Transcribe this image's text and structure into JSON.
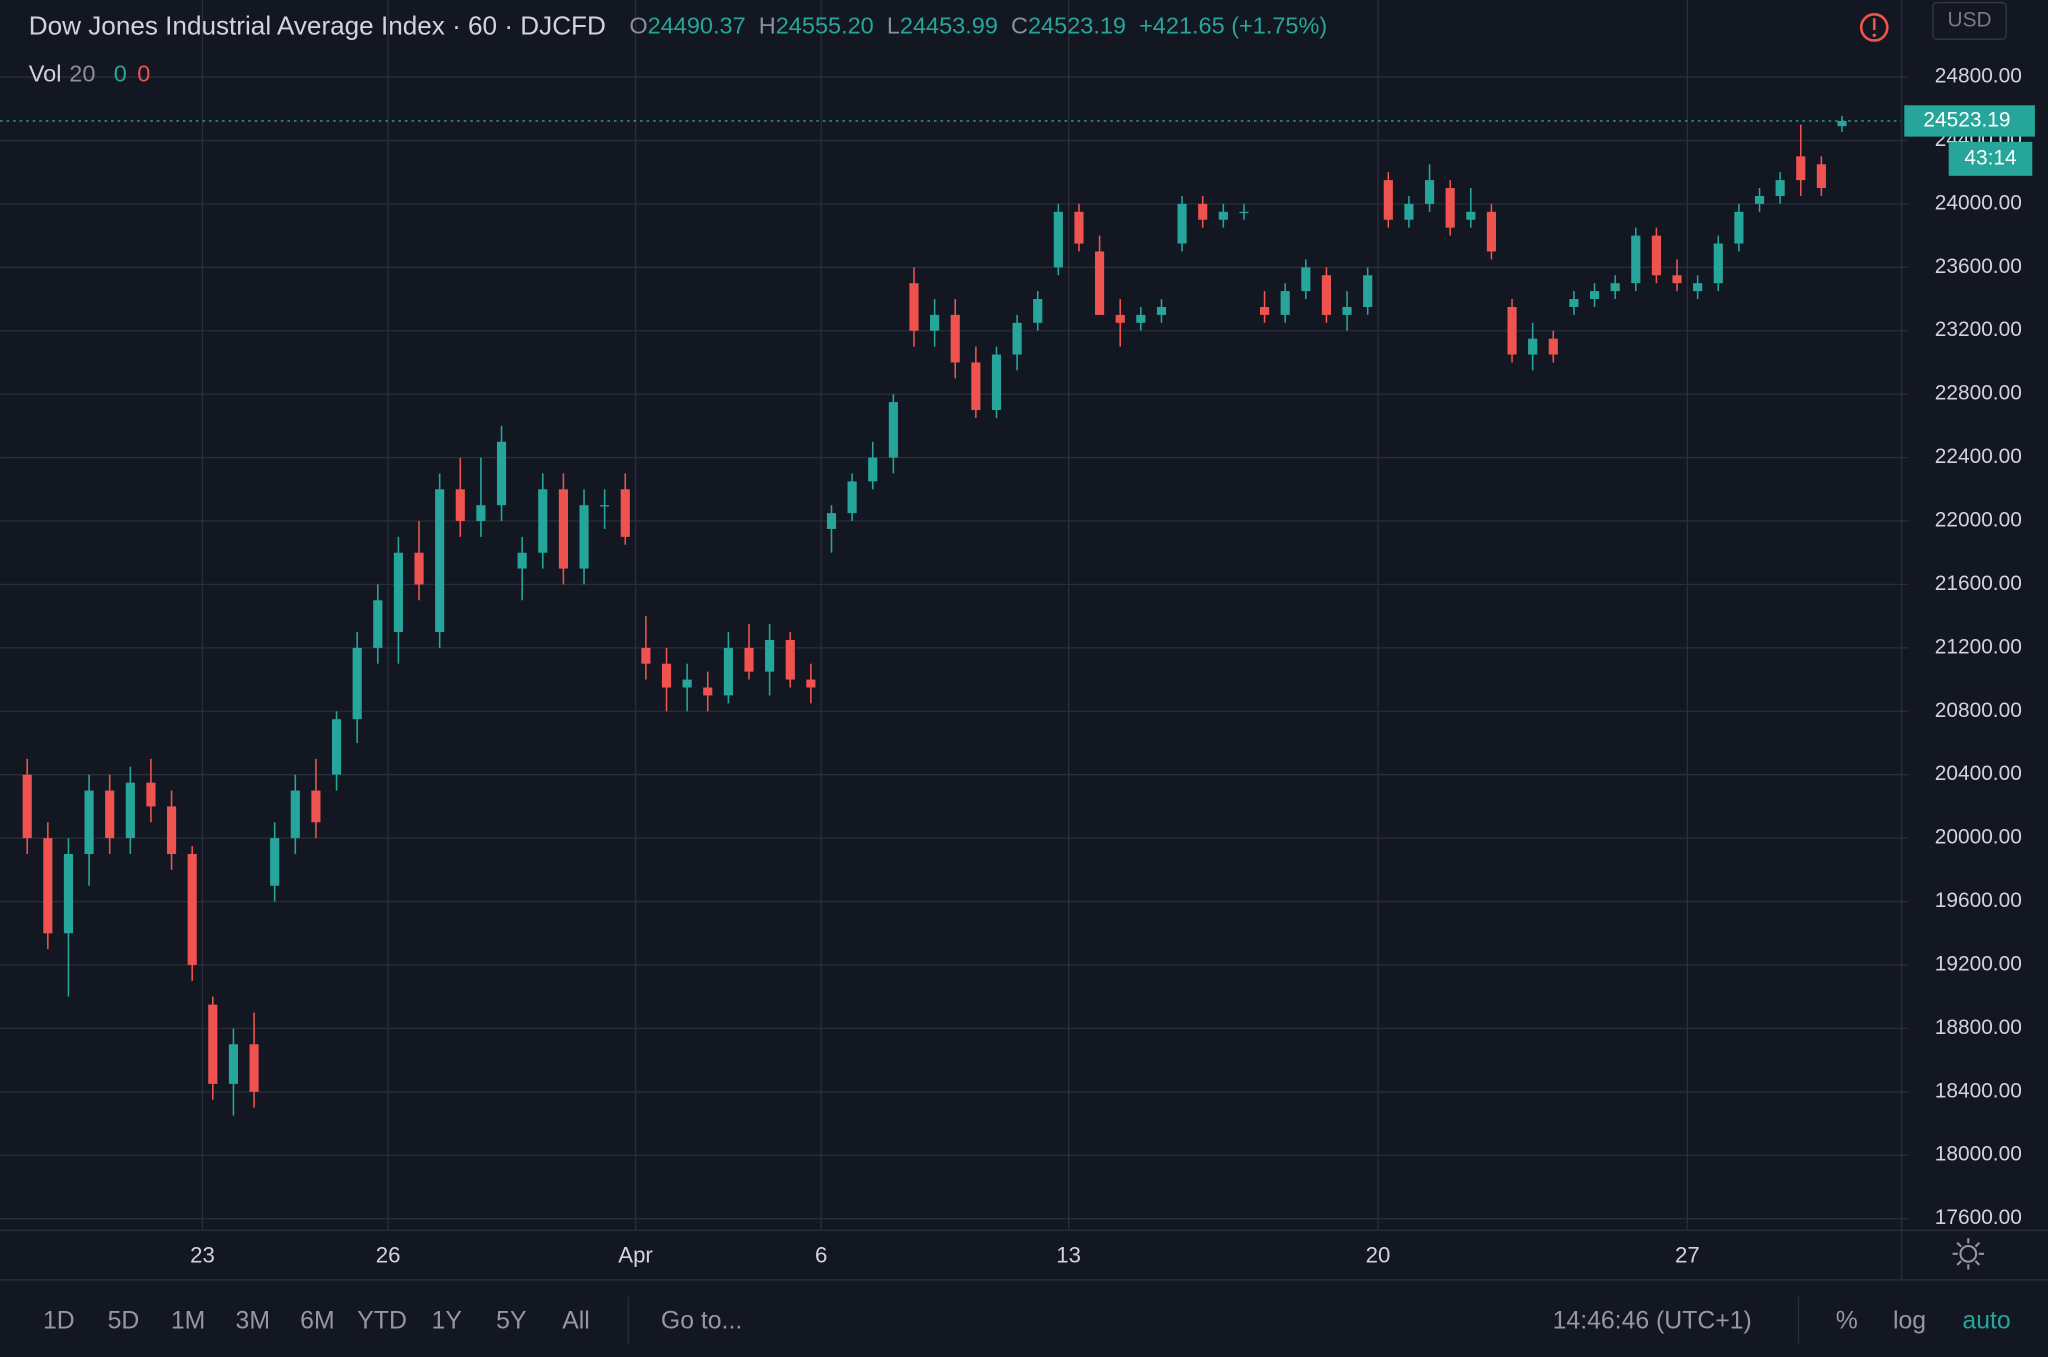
{
  "header": {
    "title": "Dow Jones Industrial Average Index · 60 · DJCFD",
    "open_label": "O",
    "open": "24490.37",
    "high_label": "H",
    "high": "24555.20",
    "low_label": "L",
    "low": "24453.99",
    "close_label": "C",
    "close": "24523.19",
    "change": "+421.65 (+1.75%)"
  },
  "volume_legend": {
    "label": "Vol",
    "length": "20",
    "up": "0",
    "down": "0"
  },
  "chart_data": {
    "type": "candlestick",
    "categories": [
      null,
      null,
      null,
      null,
      null,
      null,
      null,
      null,
      null,
      "23",
      null,
      null,
      null,
      null,
      null,
      null,
      null,
      null,
      "26",
      null,
      null,
      null,
      null,
      null,
      null,
      null,
      null,
      null,
      null,
      null,
      "Apr",
      null,
      null,
      null,
      null,
      null,
      null,
      null,
      null,
      "6",
      null,
      null,
      null,
      null,
      null,
      null,
      null,
      null,
      null,
      null,
      null,
      "13",
      null,
      null,
      null,
      null,
      null,
      null,
      null,
      null,
      null,
      null,
      null,
      null,
      null,
      null,
      "20",
      null,
      null,
      null,
      null,
      null,
      null,
      null,
      null,
      null,
      null,
      null,
      null,
      null,
      null,
      "27",
      null,
      null,
      null,
      null,
      null,
      null,
      null
    ],
    "open": [
      20400,
      20000,
      19400,
      19900,
      20300,
      20000,
      20350,
      20200,
      19900,
      18950,
      18450,
      18700,
      19700,
      20000,
      20300,
      20400,
      20750,
      21200,
      21300,
      21800,
      21300,
      22200,
      22000,
      22100,
      21700,
      21800,
      22200,
      21700,
      22100,
      22200,
      21200,
      21100,
      20950,
      20950,
      20900,
      21200,
      21050,
      21250,
      21000,
      21950,
      22050,
      22250,
      22400,
      23500,
      23200,
      23300,
      23000,
      22700,
      23050,
      23250,
      23600,
      23950,
      23700,
      23300,
      23250,
      23300,
      23750,
      24000,
      23900,
      23950,
      23350,
      23300,
      23450,
      23550,
      23300,
      23350,
      24150,
      23900,
      24000,
      24100,
      23900,
      23950,
      23350,
      23050,
      23150,
      23350,
      23400,
      23450,
      23500,
      23800,
      23550,
      23450,
      23500,
      23750,
      24000,
      24050,
      24300,
      24250,
      24490.37
    ],
    "high": [
      20500,
      20100,
      20000,
      20400,
      20400,
      20450,
      20500,
      20300,
      19950,
      19000,
      18800,
      18900,
      20100,
      20400,
      20500,
      20800,
      21300,
      21600,
      21900,
      22000,
      22300,
      22400,
      22400,
      22600,
      21900,
      22300,
      22300,
      22200,
      22200,
      22300,
      21400,
      21200,
      21100,
      21050,
      21300,
      21350,
      21350,
      21300,
      21100,
      22100,
      22300,
      22500,
      22800,
      23600,
      23400,
      23400,
      23100,
      23100,
      23300,
      23450,
      24000,
      24000,
      23800,
      23400,
      23350,
      23400,
      24050,
      24050,
      24000,
      24000,
      23450,
      23500,
      23650,
      23600,
      23450,
      23600,
      24200,
      24050,
      24250,
      24150,
      24100,
      24000,
      23400,
      23250,
      23200,
      23450,
      23500,
      23550,
      23850,
      23850,
      23650,
      23550,
      23800,
      24000,
      24100,
      24200,
      24500,
      24300,
      24555.2
    ],
    "low": [
      19900,
      19300,
      19000,
      19700,
      19900,
      19900,
      20100,
      19800,
      19100,
      18350,
      18250,
      18300,
      19600,
      19900,
      20000,
      20300,
      20600,
      21100,
      21100,
      21500,
      21200,
      21900,
      21900,
      22000,
      21500,
      21700,
      21600,
      21600,
      21950,
      21850,
      21000,
      20800,
      20800,
      20800,
      20850,
      21000,
      20900,
      20950,
      20850,
      21800,
      22000,
      22200,
      22300,
      23100,
      23100,
      22900,
      22650,
      22650,
      22950,
      23200,
      23550,
      23700,
      23300,
      23100,
      23200,
      23250,
      23700,
      23850,
      23850,
      23900,
      23250,
      23250,
      23400,
      23250,
      23200,
      23300,
      23850,
      23850,
      23950,
      23800,
      23850,
      23650,
      23000,
      22950,
      23000,
      23300,
      23350,
      23400,
      23450,
      23500,
      23450,
      23400,
      23450,
      23700,
      23950,
      24000,
      24050,
      24050,
      24453.99
    ],
    "close": [
      20000,
      19400,
      19900,
      20300,
      20000,
      20350,
      20200,
      19900,
      19200,
      18450,
      18700,
      18400,
      20000,
      20300,
      20100,
      20750,
      21200,
      21500,
      21800,
      21600,
      22200,
      22000,
      22100,
      22500,
      21800,
      22200,
      21700,
      22100,
      22100,
      21900,
      21100,
      20950,
      21000,
      20900,
      21200,
      21050,
      21250,
      21000,
      20950,
      22050,
      22250,
      22400,
      22750,
      23200,
      23300,
      23000,
      22700,
      23050,
      23250,
      23400,
      23950,
      23750,
      23300,
      23250,
      23300,
      23350,
      24000,
      23900,
      23950,
      23950,
      23300,
      23450,
      23600,
      23300,
      23350,
      23550,
      23900,
      24000,
      24150,
      23850,
      23950,
      23700,
      23050,
      23150,
      23050,
      23400,
      23450,
      23500,
      23800,
      23550,
      23500,
      23500,
      23750,
      23950,
      24050,
      24150,
      24150,
      24100,
      24523.19
    ],
    "up_color": "#26a69a",
    "down_color": "#ef5350",
    "ylim": [
      17543,
      25286
    ],
    "yticks": [
      {
        "value": 17600,
        "label": "17600.00"
      },
      {
        "value": 18000,
        "label": "18000.00"
      },
      {
        "value": 18400,
        "label": "18400.00"
      },
      {
        "value": 18800,
        "label": "18800.00"
      },
      {
        "value": 19200,
        "label": "19200.00"
      },
      {
        "value": 19600,
        "label": "19600.00"
      },
      {
        "value": 20000,
        "label": "20000.00"
      },
      {
        "value": 20400,
        "label": "20400.00"
      },
      {
        "value": 20800,
        "label": "20800.00"
      },
      {
        "value": 21200,
        "label": "21200.00"
      },
      {
        "value": 21600,
        "label": "21600.00"
      },
      {
        "value": 22000,
        "label": "22000.00"
      },
      {
        "value": 22400,
        "label": "22400.00"
      },
      {
        "value": 22800,
        "label": "22800.00"
      },
      {
        "value": 23200,
        "label": "23200.00"
      },
      {
        "value": 23600,
        "label": "23600.00"
      },
      {
        "value": 24000,
        "label": "24000.00"
      },
      {
        "value": 24400,
        "label": "24400.00"
      },
      {
        "value": 24800,
        "label": "24800.00"
      }
    ],
    "grid": true,
    "currency": "USD",
    "last_price": {
      "value": 24523.19,
      "label": "24523.19"
    },
    "countdown": "43:14"
  },
  "toolbar": {
    "ranges": [
      "1D",
      "5D",
      "1M",
      "3M",
      "6M",
      "YTD",
      "1Y",
      "5Y",
      "All"
    ],
    "goto": "Go to...",
    "time": "14:46:46 (UTC+1)",
    "percent": "%",
    "log": "log",
    "auto": "auto"
  }
}
